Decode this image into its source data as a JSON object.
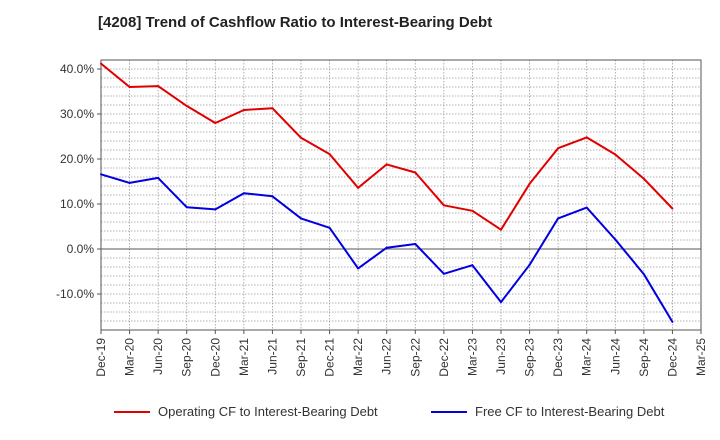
{
  "chart_data": {
    "type": "line",
    "title": "[4208]  Trend of Cashflow Ratio to Interest-Bearing Debt",
    "xlabel": "",
    "ylabel": "",
    "categories": [
      "Dec-19",
      "Mar-20",
      "Jun-20",
      "Sep-20",
      "Dec-20",
      "Mar-21",
      "Jun-21",
      "Sep-21",
      "Dec-21",
      "Mar-22",
      "Jun-22",
      "Sep-22",
      "Dec-22",
      "Mar-23",
      "Jun-23",
      "Sep-23",
      "Dec-23",
      "Mar-24",
      "Jun-24",
      "Sep-24",
      "Dec-24",
      "Mar-25"
    ],
    "ylim": [
      -18,
      42
    ],
    "yticks": [
      -10,
      0,
      10,
      20,
      30,
      40
    ],
    "ytick_labels": [
      "-10.0%",
      "0.0%",
      "10.0%",
      "20.0%",
      "30.0%",
      "40.0%"
    ],
    "grid": true,
    "legend_position": "bottom",
    "series": [
      {
        "name": "Operating CF to Interest-Bearing Debt",
        "color": "#e00000",
        "values": [
          41.2,
          36.0,
          36.2,
          31.8,
          28.0,
          30.9,
          31.3,
          24.7,
          21.1,
          13.6,
          18.8,
          17.0,
          9.7,
          8.5,
          4.3,
          14.5,
          22.4,
          24.8,
          21.0,
          15.6,
          9.0,
          null
        ]
      },
      {
        "name": "Free CF to Interest-Bearing Debt",
        "color": "#0000e0",
        "values": [
          16.6,
          14.7,
          15.8,
          9.3,
          8.8,
          12.4,
          11.7,
          6.8,
          4.7,
          -4.3,
          0.3,
          1.1,
          -5.5,
          -3.6,
          -11.8,
          -3.5,
          6.8,
          9.2,
          2.1,
          -5.6,
          -16.2,
          null
        ]
      }
    ]
  }
}
